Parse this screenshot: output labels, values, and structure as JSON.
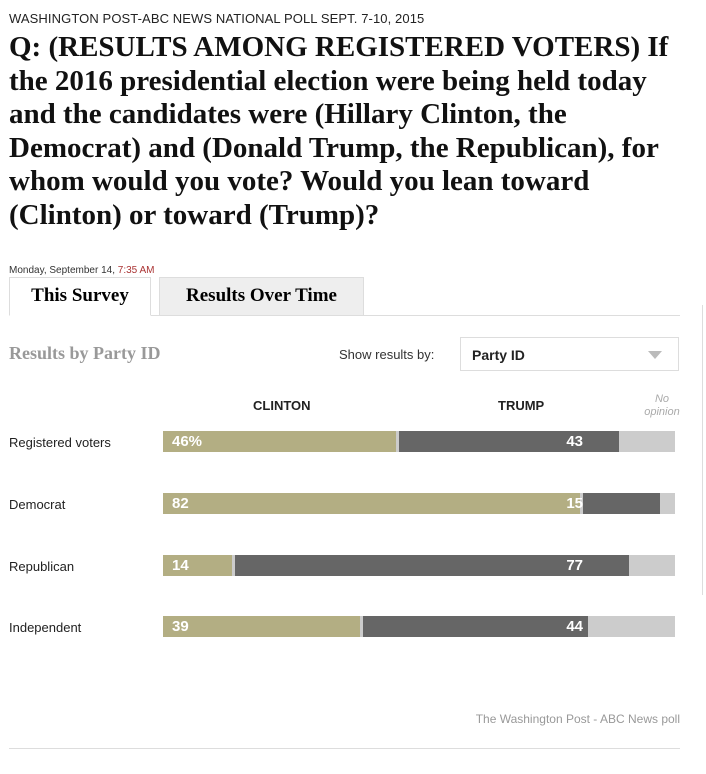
{
  "header": {
    "kicker": "WASHINGTON POST-ABC NEWS NATIONAL POLL SEPT. 7-10, 2015",
    "question": "Q: (RESULTS AMONG REGISTERED VOTERS) If the 2016 presidential election were being held today and the candidates were (Hillary Clinton, the Democrat) and (Donald Trump, the Republican), for whom would you vote? Would you lean toward (Clinton) or toward (Trump)?",
    "date": "Monday, September 14,",
    "time": "7:35 AM"
  },
  "tabs": [
    {
      "label": "This Survey",
      "active": true
    },
    {
      "label": "Results Over Time",
      "active": false
    }
  ],
  "controls": {
    "section_title": "Results by Party ID",
    "show_label": "Show results by:",
    "selected": "Party ID"
  },
  "colors": {
    "clinton": "#b3ae83",
    "trump": "#666666",
    "no_opinion": "#cccccc"
  },
  "chart_data": {
    "type": "bar",
    "stacked": true,
    "orientation": "horizontal",
    "categories": [
      "Registered voters",
      "Democrat",
      "Republican",
      "Independent"
    ],
    "series": [
      {
        "name": "CLINTON",
        "values": [
          46,
          82,
          14,
          39
        ]
      },
      {
        "name": "TRUMP",
        "values": [
          43,
          15,
          77,
          44
        ]
      },
      {
        "name": "No opinion",
        "values": [
          11,
          3,
          9,
          17
        ]
      }
    ],
    "first_label_suffix": "%",
    "xlim": [
      0,
      100
    ]
  },
  "footer": {
    "credit": "The Washington Post - ABC News poll"
  }
}
